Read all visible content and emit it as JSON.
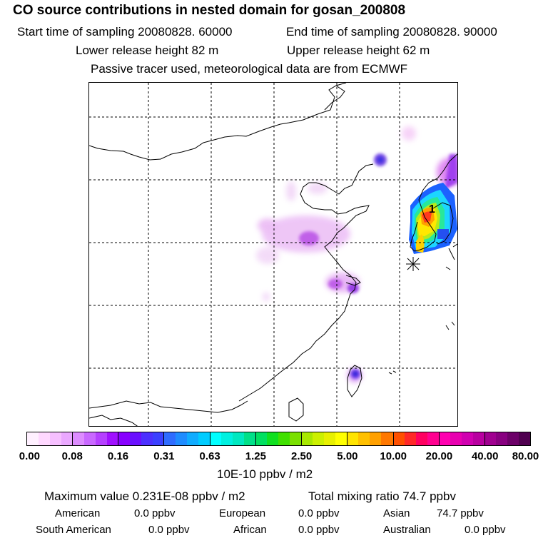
{
  "title": "CO  source contributions in nested domain for gosan_200808",
  "sampling": {
    "start": "Start time of sampling 20080828. 60000",
    "end": "End time of sampling 20080828. 90000"
  },
  "release": {
    "lower": "Lower release height   82 m",
    "upper": "Upper release height   62 m"
  },
  "note": "Passive tracer used, meteorological data are from ECMWF",
  "map": {
    "station_label": "1",
    "colors": {
      "coast": "#000000",
      "grid": "#000000"
    }
  },
  "colorbar": {
    "ticks": [
      "0.00",
      "0.08",
      "0.16",
      "0.31",
      "0.63",
      "1.25",
      "2.50",
      "5.00",
      "10.00",
      "20.00",
      "40.00",
      "80.00"
    ],
    "unit": "10E-10 ppbv / m2",
    "colors": [
      "#fff0ff",
      "#ffd8ff",
      "#f6bfff",
      "#eaa8ff",
      "#dd8cff",
      "#c968ff",
      "#b540ff",
      "#a010ff",
      "#8800ff",
      "#6a10ff",
      "#4c30ff",
      "#3b40ff",
      "#2f6cff",
      "#1f8cff",
      "#10acff",
      "#00ccff",
      "#00ffff",
      "#00f0e0",
      "#00e8c0",
      "#00e088",
      "#00e060",
      "#10e020",
      "#40e000",
      "#7ae000",
      "#a8e800",
      "#ccf000",
      "#e8f000",
      "#ffff00",
      "#ffe400",
      "#ffc000",
      "#ffa000",
      "#ff7800",
      "#ff5000",
      "#ff2828",
      "#ff0060",
      "#ff0090",
      "#ff00b0",
      "#e800b0",
      "#d000b0",
      "#b800a0",
      "#a00090",
      "#880080",
      "#6c0068",
      "#500050"
    ]
  },
  "summary": {
    "max_label": "Maximum value  0.231E-08 ppbv / m2",
    "total_label": "Total mixing ratio      74.7 ppbv"
  },
  "regions": [
    {
      "name": "American",
      "value": "0.0 ppbv"
    },
    {
      "name": "European",
      "value": "0.0 ppbv"
    },
    {
      "name": "Asian",
      "value": "74.7 ppbv"
    },
    {
      "name": "South American",
      "value": "0.0 ppbv"
    },
    {
      "name": "African",
      "value": "0.0 ppbv"
    },
    {
      "name": "Australian",
      "value": "0.0 ppbv"
    }
  ]
}
